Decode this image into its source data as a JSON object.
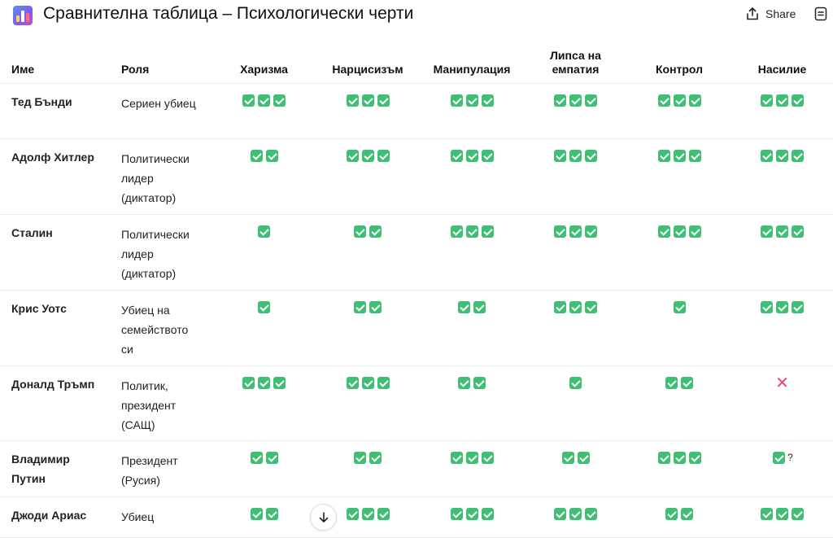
{
  "header": {
    "title": "Сравнителна таблица – Психологически черти",
    "share_label": "Share"
  },
  "table": {
    "columns": [
      "Име",
      "Роля",
      "Харизма",
      "Нарцисизъм",
      "Манипулация",
      "Липса на\nемпатия",
      "Контрол",
      "Насилие"
    ],
    "rows": [
      {
        "name": "Тед Бънди",
        "role": "Сериен убиец",
        "marks": [
          3,
          3,
          3,
          3,
          3,
          3
        ]
      },
      {
        "name": "Адолф Хитлер",
        "role": "Политически\nлидер\n(диктатор)",
        "marks": [
          2,
          3,
          3,
          3,
          3,
          3
        ]
      },
      {
        "name": "Сталин",
        "role": "Политически\nлидер\n(диктатор)",
        "marks": [
          1,
          2,
          3,
          3,
          3,
          3
        ]
      },
      {
        "name": "Крис Уотс",
        "role": "Убиец на\nсемейството\nси",
        "marks": [
          1,
          2,
          2,
          3,
          1,
          3
        ]
      },
      {
        "name": "Доналд Тръмп",
        "role": "Политик,\nпрезидент\n(САЩ)",
        "marks": [
          3,
          3,
          2,
          1,
          2,
          "cross"
        ]
      },
      {
        "name": "Владимир\nПутин",
        "role": "Президент\n(Русия)",
        "marks": [
          2,
          2,
          3,
          2,
          3,
          "1?"
        ]
      },
      {
        "name": "Джоди Ариас",
        "role": "Убиец",
        "marks": [
          2,
          3,
          3,
          3,
          2,
          3
        ]
      }
    ],
    "cross_symbol": "✕",
    "question_symbol": "?"
  },
  "icons": {
    "title": "bar-chart-icon",
    "share": "share-icon",
    "doc": "document-icon",
    "check": "check-mark-icon",
    "cross": "cross-mark-icon",
    "scroll": "arrow-down-icon"
  },
  "colors": {
    "check": "#3fbf73",
    "cross": "#e8466f"
  }
}
